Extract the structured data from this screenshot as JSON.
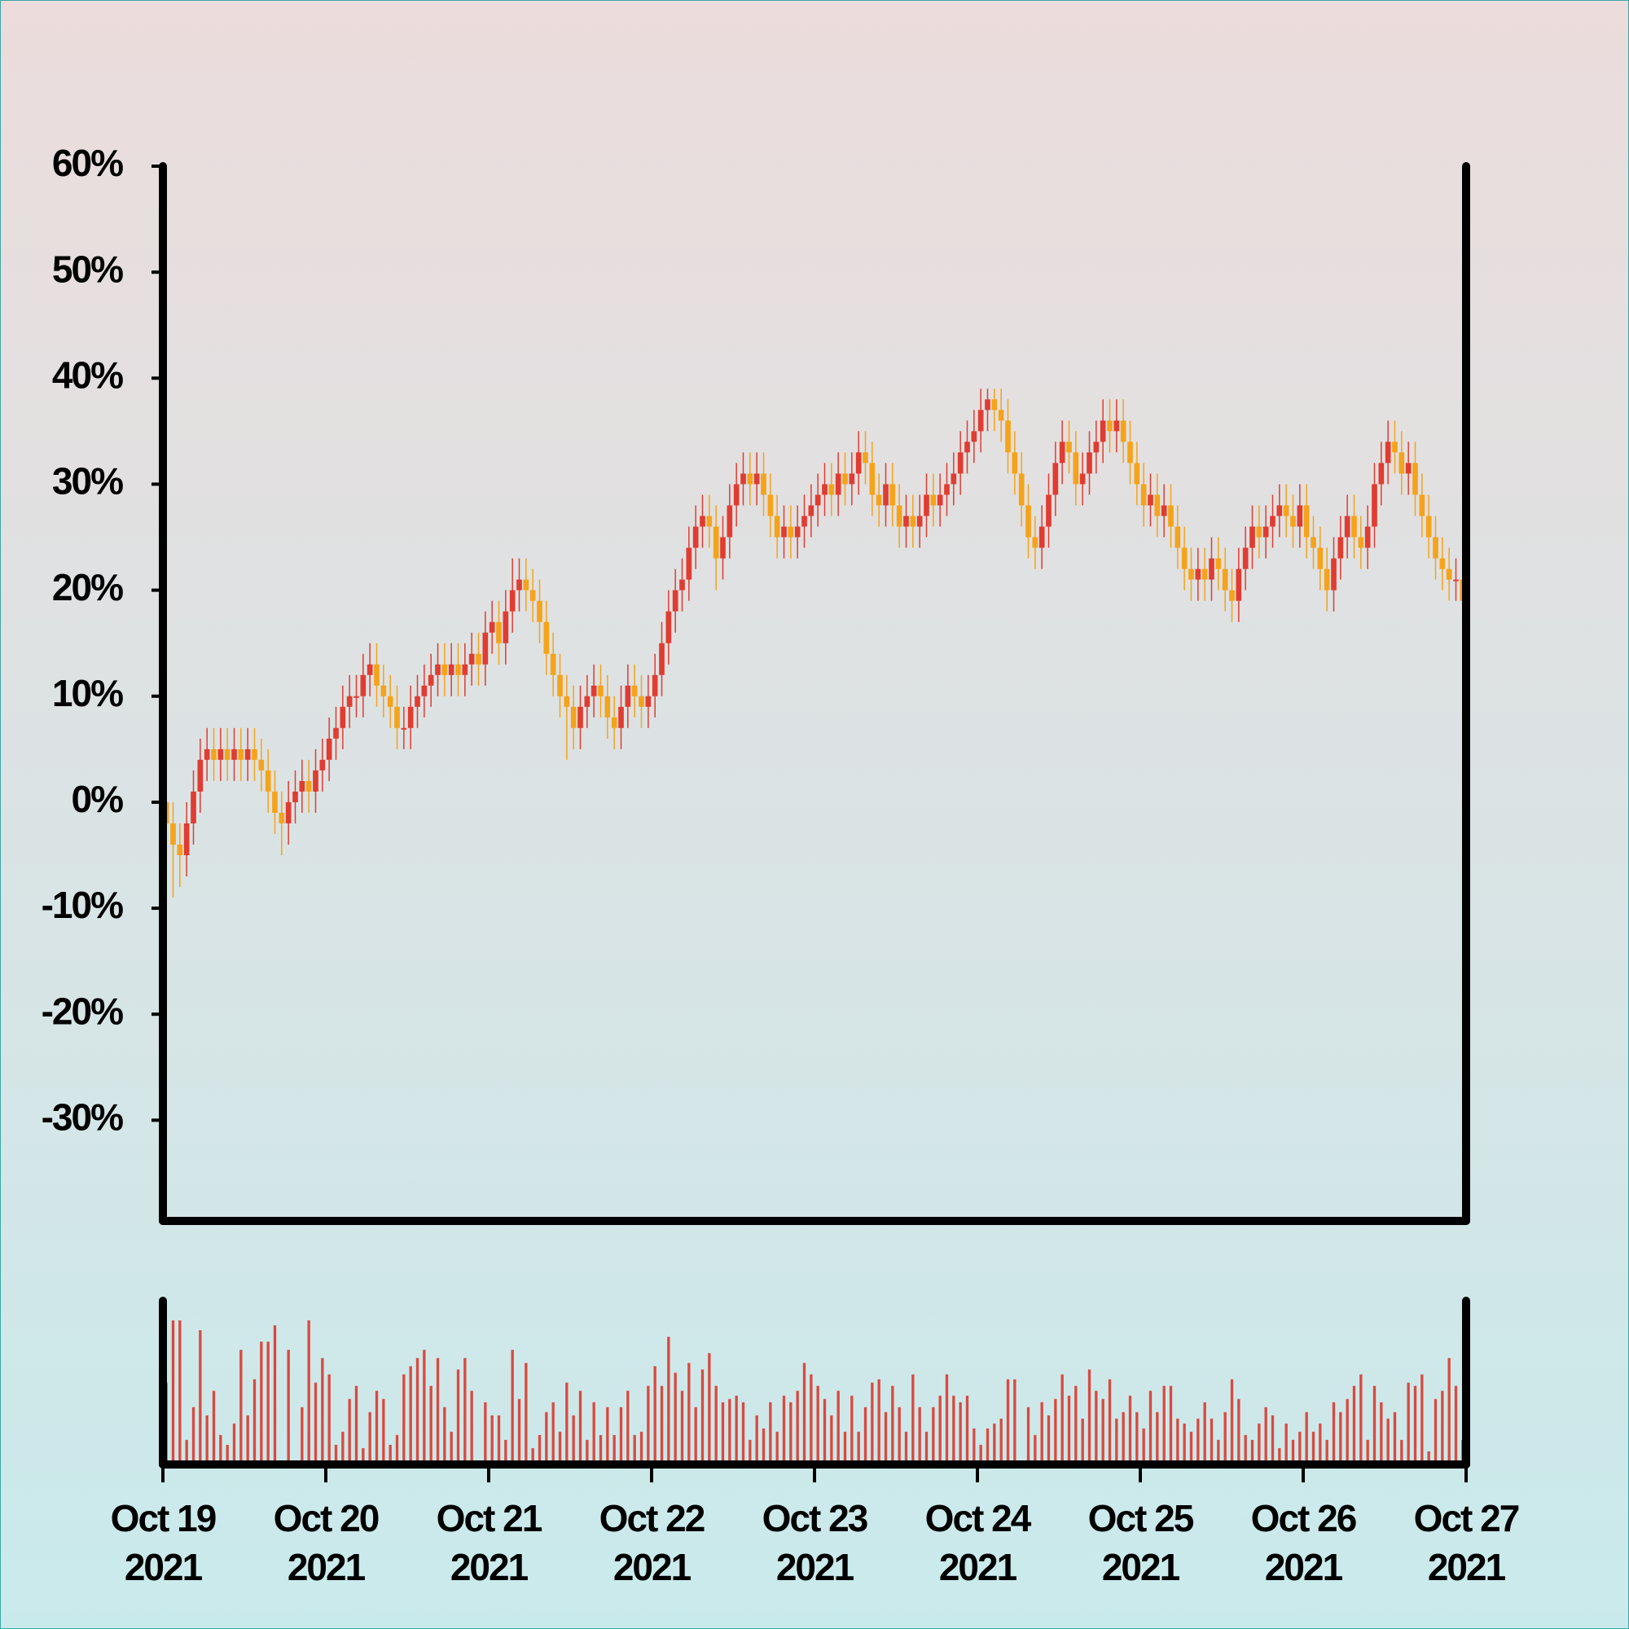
{
  "chart_data": {
    "type": "candlestick",
    "up_color": "#e03c31",
    "down_color": "#f5a31a",
    "volume_color": "#d94a3f",
    "xlim": [
      "2021-10-19",
      "2021-10-27"
    ],
    "xticks": [
      {
        "value": "2021-10-19",
        "label": [
          "Oct 19",
          "2021"
        ]
      },
      {
        "value": "2021-10-20",
        "label": [
          "Oct 20",
          "2021"
        ]
      },
      {
        "value": "2021-10-21",
        "label": [
          "Oct 21",
          "2021"
        ]
      },
      {
        "value": "2021-10-22",
        "label": [
          "Oct 22",
          "2021"
        ]
      },
      {
        "value": "2021-10-23",
        "label": [
          "Oct 23",
          "2021"
        ]
      },
      {
        "value": "2021-10-24",
        "label": [
          "Oct 24",
          "2021"
        ]
      },
      {
        "value": "2021-10-25",
        "label": [
          "Oct 25",
          "2021"
        ]
      },
      {
        "value": "2021-10-26",
        "label": [
          "Oct 26",
          "2021"
        ]
      },
      {
        "value": "2021-10-27",
        "label": [
          "Oct 27",
          "2021"
        ]
      }
    ],
    "ylim": [
      -39.5,
      60
    ],
    "yticks": [
      {
        "value": -30,
        "label": "-30%"
      },
      {
        "value": -20,
        "label": "-20%"
      },
      {
        "value": -10,
        "label": "-10%"
      },
      {
        "value": 0,
        "label": "0%"
      },
      {
        "value": 10,
        "label": "10%"
      },
      {
        "value": 20,
        "label": "20%"
      },
      {
        "value": 30,
        "label": "30%"
      },
      {
        "value": 40,
        "label": "40%"
      },
      {
        "value": 50,
        "label": "50%"
      },
      {
        "value": 60,
        "label": "60%"
      }
    ],
    "volume_ylim": [
      0,
      100
    ],
    "open": [
      0,
      -2,
      -4,
      -5,
      -2,
      1,
      4,
      5,
      4,
      5,
      4,
      5,
      4,
      5,
      4,
      3,
      1,
      -1,
      -2,
      0,
      1,
      2,
      1,
      3,
      4,
      6,
      7,
      9,
      10,
      10,
      12,
      13,
      11,
      10,
      9,
      7,
      7,
      9,
      10,
      11,
      12,
      13,
      12,
      13,
      12,
      13,
      14,
      13,
      16,
      17,
      15,
      18,
      20,
      21,
      20,
      19,
      17,
      14,
      12,
      10,
      9,
      7,
      9,
      10,
      11,
      10,
      8,
      7,
      9,
      11,
      10,
      9,
      10,
      12,
      15,
      18,
      20,
      21,
      24,
      26,
      27,
      26,
      23,
      25,
      28,
      30,
      31,
      30,
      31,
      29,
      27,
      25,
      26,
      25,
      26,
      27,
      28,
      29,
      30,
      29,
      31,
      30,
      31,
      33,
      32,
      29,
      28,
      30,
      28,
      26,
      27,
      26,
      27,
      29,
      28,
      29,
      30,
      31,
      33,
      34,
      35,
      37,
      38,
      37,
      36,
      33,
      31,
      28,
      25,
      24,
      26,
      29,
      32,
      34,
      33,
      30,
      31,
      33,
      34,
      36,
      35,
      36,
      34,
      32,
      30,
      28,
      29,
      27,
      28,
      26,
      24,
      22,
      21,
      22,
      21,
      23,
      22,
      20,
      19,
      22,
      24,
      26,
      25,
      26,
      27,
      28,
      27,
      26,
      28,
      25,
      24,
      22,
      20,
      23,
      25,
      27,
      25,
      24,
      26,
      30,
      32,
      34,
      33,
      31,
      32,
      29,
      27,
      25,
      23,
      22,
      21,
      21
    ],
    "close": [
      -2,
      -4,
      -5,
      -2,
      1,
      4,
      5,
      4,
      5,
      4,
      5,
      4,
      5,
      4,
      3,
      1,
      -1,
      -2,
      0,
      1,
      2,
      1,
      3,
      4,
      6,
      7,
      9,
      10,
      10,
      12,
      13,
      11,
      10,
      9,
      7,
      7,
      9,
      10,
      11,
      12,
      13,
      12,
      13,
      12,
      13,
      14,
      13,
      16,
      17,
      15,
      18,
      20,
      21,
      20,
      19,
      17,
      14,
      12,
      10,
      9,
      7,
      9,
      10,
      11,
      10,
      8,
      7,
      9,
      11,
      10,
      9,
      10,
      12,
      15,
      18,
      20,
      21,
      24,
      26,
      27,
      26,
      23,
      25,
      28,
      30,
      31,
      30,
      31,
      29,
      27,
      25,
      26,
      25,
      26,
      27,
      28,
      29,
      30,
      29,
      31,
      30,
      31,
      33,
      32,
      29,
      28,
      30,
      28,
      26,
      27,
      26,
      27,
      29,
      28,
      29,
      30,
      31,
      33,
      34,
      35,
      37,
      38,
      37,
      36,
      33,
      31,
      28,
      25,
      24,
      26,
      29,
      32,
      34,
      33,
      30,
      31,
      33,
      34,
      36,
      35,
      36,
      34,
      32,
      30,
      28,
      29,
      27,
      28,
      26,
      24,
      22,
      21,
      22,
      21,
      23,
      22,
      20,
      19,
      22,
      24,
      26,
      25,
      26,
      27,
      28,
      27,
      26,
      28,
      25,
      24,
      22,
      20,
      23,
      25,
      27,
      25,
      24,
      26,
      30,
      32,
      34,
      33,
      31,
      32,
      29,
      27,
      25,
      23,
      22,
      21,
      21,
      19
    ],
    "high": [
      2,
      0,
      -2,
      0,
      3,
      6,
      7,
      7,
      7,
      7,
      7,
      7,
      7,
      7,
      6,
      5,
      3,
      1,
      2,
      3,
      4,
      4,
      5,
      6,
      8,
      9,
      11,
      12,
      12,
      14,
      15,
      15,
      13,
      12,
      11,
      9,
      11,
      12,
      13,
      14,
      15,
      15,
      15,
      15,
      15,
      16,
      16,
      18,
      19,
      19,
      20,
      23,
      23,
      23,
      22,
      21,
      19,
      16,
      14,
      12,
      11,
      11,
      12,
      13,
      13,
      12,
      10,
      11,
      13,
      13,
      12,
      12,
      14,
      17,
      20,
      22,
      23,
      26,
      28,
      29,
      29,
      28,
      27,
      30,
      32,
      33,
      33,
      33,
      33,
      31,
      29,
      28,
      28,
      28,
      29,
      30,
      31,
      32,
      32,
      33,
      33,
      33,
      35,
      35,
      34,
      31,
      32,
      32,
      30,
      29,
      29,
      29,
      31,
      31,
      31,
      32,
      33,
      35,
      36,
      37,
      39,
      39,
      39,
      39,
      38,
      35,
      33,
      30,
      27,
      28,
      31,
      34,
      36,
      36,
      35,
      33,
      35,
      36,
      38,
      38,
      38,
      38,
      36,
      34,
      32,
      31,
      31,
      30,
      30,
      28,
      26,
      24,
      24,
      24,
      25,
      25,
      24,
      22,
      24,
      26,
      28,
      28,
      28,
      29,
      30,
      30,
      29,
      30,
      30,
      27,
      26,
      24,
      25,
      27,
      29,
      29,
      27,
      28,
      32,
      34,
      36,
      36,
      35,
      34,
      34,
      31,
      29,
      27,
      25,
      24,
      23,
      23
    ],
    "low": [
      -4,
      -9,
      -8,
      -7,
      -4,
      -1,
      2,
      2,
      2,
      2,
      2,
      2,
      2,
      2,
      1,
      -1,
      -3,
      -5,
      -4,
      -2,
      -1,
      -1,
      -1,
      1,
      2,
      4,
      5,
      7,
      8,
      8,
      10,
      9,
      8,
      7,
      5,
      5,
      5,
      7,
      8,
      9,
      10,
      10,
      10,
      10,
      10,
      11,
      11,
      11,
      14,
      13,
      13,
      16,
      18,
      18,
      17,
      15,
      12,
      10,
      8,
      4,
      5,
      5,
      7,
      8,
      8,
      6,
      5,
      5,
      7,
      8,
      7,
      7,
      8,
      10,
      13,
      16,
      18,
      19,
      22,
      24,
      24,
      20,
      21,
      23,
      26,
      28,
      28,
      28,
      27,
      25,
      23,
      23,
      23,
      23,
      24,
      25,
      26,
      27,
      27,
      27,
      28,
      28,
      29,
      30,
      27,
      26,
      26,
      26,
      24,
      24,
      24,
      24,
      25,
      26,
      26,
      27,
      28,
      29,
      31,
      32,
      33,
      35,
      35,
      34,
      31,
      29,
      26,
      23,
      22,
      22,
      24,
      27,
      30,
      31,
      28,
      28,
      29,
      31,
      32,
      33,
      33,
      32,
      30,
      28,
      26,
      26,
      25,
      25,
      24,
      22,
      20,
      19,
      19,
      19,
      19,
      20,
      18,
      17,
      17,
      20,
      22,
      23,
      23,
      24,
      25,
      25,
      24,
      24,
      23,
      22,
      20,
      18,
      18,
      21,
      23,
      23,
      22,
      22,
      24,
      28,
      30,
      31,
      29,
      29,
      27,
      25,
      23,
      21,
      20,
      19,
      19,
      17
    ],
    "volume": [
      50,
      88,
      88,
      15,
      35,
      82,
      30,
      45,
      18,
      12,
      25,
      70,
      30,
      52,
      75,
      75,
      85,
      2,
      70,
      2,
      35,
      88,
      50,
      65,
      55,
      12,
      20,
      40,
      48,
      10,
      32,
      45,
      40,
      12,
      18,
      55,
      60,
      65,
      70,
      48,
      65,
      35,
      20,
      58,
      65,
      45,
      2,
      38,
      30,
      30,
      15,
      70,
      40,
      62,
      10,
      18,
      32,
      38,
      20,
      50,
      30,
      45,
      15,
      38,
      18,
      35,
      18,
      35,
      45,
      18,
      20,
      48,
      60,
      48,
      78,
      56,
      45,
      62,
      35,
      58,
      68,
      48,
      38,
      40,
      42,
      38,
      15,
      30,
      22,
      38,
      20,
      42,
      38,
      45,
      62,
      55,
      48,
      40,
      30,
      45,
      20,
      42,
      20,
      35,
      50,
      52,
      32,
      48,
      35,
      20,
      55,
      35,
      20,
      35,
      42,
      55,
      42,
      38,
      42,
      22,
      12,
      22,
      25,
      28,
      52,
      52,
      2,
      35,
      18,
      38,
      30,
      40,
      55,
      42,
      48,
      28,
      58,
      45,
      40,
      52,
      28,
      32,
      42,
      32,
      22,
      45,
      32,
      48,
      48,
      28,
      25,
      20,
      28,
      38,
      28,
      15,
      32,
      52,
      40,
      18,
      15,
      25,
      35,
      30,
      10,
      25,
      15,
      20,
      32,
      20,
      25,
      15,
      38,
      32,
      40,
      48,
      55,
      15,
      48,
      38,
      28,
      32,
      15,
      50,
      48,
      55,
      8,
      40,
      45,
      65,
      48,
      15
    ]
  }
}
